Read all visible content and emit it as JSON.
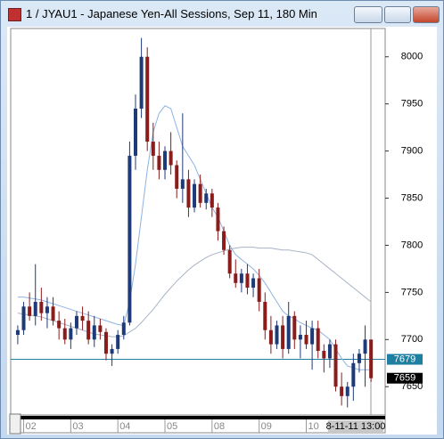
{
  "window_title": "1 / JYAU1 - Japanese Yen-All Sessions, Sep 11, 180 Min",
  "cursor_label": "8-11-11 13:00",
  "chart_data": {
    "type": "candlestick",
    "up_color": "#1f3a78",
    "down_color": "#8b1c1c",
    "open": [
      7705,
      7710,
      7735,
      7725,
      7740,
      7728,
      7735,
      7720,
      7712,
      7700,
      7712,
      7725,
      7720,
      7700,
      7715,
      7708,
      7685,
      7690,
      7705,
      7718,
      7895,
      7945,
      8000,
      7910,
      7895,
      7880,
      7900,
      7885,
      7860,
      7870,
      7840,
      7865,
      7845,
      7855,
      7840,
      7815,
      7795,
      7770,
      7760,
      7770,
      7755,
      7765,
      7740,
      7710,
      7695,
      7715,
      7690,
      7725,
      7700,
      7705,
      7695,
      7712,
      7688,
      7680,
      7695,
      7650,
      7640,
      7650,
      7675,
      7685,
      7700
    ],
    "high": [
      7715,
      7740,
      7750,
      7780,
      7755,
      7745,
      7745,
      7730,
      7722,
      7718,
      7730,
      7735,
      7730,
      7725,
      7722,
      7712,
      7695,
      7710,
      7725,
      7910,
      7960,
      8020,
      8010,
      7930,
      7910,
      7905,
      7920,
      7890,
      7940,
      7880,
      7870,
      7875,
      7860,
      7860,
      7845,
      7820,
      7800,
      7785,
      7775,
      7780,
      7770,
      7775,
      7750,
      7725,
      7720,
      7725,
      7740,
      7730,
      7715,
      7720,
      7720,
      7720,
      7695,
      7700,
      7700,
      7665,
      7655,
      7685,
      7690,
      7715,
      7700
    ],
    "low": [
      7695,
      7705,
      7720,
      7715,
      7720,
      7712,
      7715,
      7700,
      7695,
      7690,
      7705,
      7710,
      7695,
      7692,
      7700,
      7678,
      7672,
      7685,
      7700,
      7715,
      7880,
      7935,
      7900,
      7880,
      7870,
      7870,
      7875,
      7850,
      7845,
      7830,
      7835,
      7840,
      7838,
      7830,
      7805,
      7790,
      7765,
      7755,
      7750,
      7748,
      7745,
      7730,
      7700,
      7685,
      7690,
      7680,
      7685,
      7690,
      7680,
      7690,
      7668,
      7680,
      7665,
      7670,
      7645,
      7630,
      7628,
      7635,
      7665,
      7650,
      7655
    ],
    "close": [
      7710,
      7735,
      7725,
      7740,
      7728,
      7735,
      7720,
      7712,
      7700,
      7712,
      7725,
      7720,
      7700,
      7715,
      7708,
      7685,
      7690,
      7705,
      7718,
      7895,
      7945,
      8000,
      7910,
      7895,
      7880,
      7900,
      7885,
      7860,
      7870,
      7840,
      7865,
      7845,
      7855,
      7840,
      7815,
      7795,
      7770,
      7760,
      7770,
      7755,
      7765,
      7740,
      7710,
      7695,
      7715,
      7690,
      7725,
      7700,
      7705,
      7695,
      7712,
      7688,
      7680,
      7695,
      7650,
      7640,
      7650,
      7675,
      7685,
      7700,
      7659
    ],
    "lines": [
      {
        "color": "#8fb3e0",
        "values": [
          7745,
          7745,
          7744,
          7743,
          7742,
          7740,
          7738,
          7736,
          7734,
          7732,
          7730,
          7728,
          7726,
          7724,
          7722,
          7720,
          7718,
          7716,
          7715,
          7740,
          7780,
          7830,
          7880,
          7920,
          7940,
          7948,
          7945,
          7925,
          7905,
          7895,
          7885,
          7870,
          7855,
          7840,
          7830,
          7815,
          7800,
          7790,
          7785,
          7780,
          7775,
          7768,
          7760,
          7750,
          7740,
          7730,
          7725,
          7722,
          7718,
          7715,
          7712,
          7710,
          7705,
          7700,
          7690,
          7680,
          7672,
          7670,
          7668,
          7668,
          7668
        ]
      },
      {
        "color": "#a8b4c4",
        "values": [
          7728,
          7727,
          7726,
          7725,
          7724,
          7722,
          7720,
          7718,
          7716,
          7714,
          7712,
          7710,
          7708,
          7706,
          7705,
          7704,
          7703,
          7703,
          7704,
          7708,
          7712,
          7718,
          7725,
          7732,
          7740,
          7748,
          7755,
          7762,
          7768,
          7774,
          7779,
          7783,
          7787,
          7790,
          7792,
          7794,
          7796,
          7797,
          7798,
          7798,
          7798,
          7797,
          7797,
          7797,
          7796,
          7795,
          7795,
          7794,
          7793,
          7792,
          7790,
          7785,
          7780,
          7775,
          7770,
          7765,
          7760,
          7755,
          7750,
          7745,
          7740
        ]
      }
    ],
    "ref_line": 7679,
    "ref_color": "#1f7fa0",
    "ylim": [
      7620,
      8030
    ],
    "yticks": [
      7650,
      7700,
      7750,
      7800,
      7850,
      7900,
      7950,
      8000
    ],
    "xlim": [
      -1.2,
      62.4
    ],
    "xticks": [
      {
        "value": 1,
        "label": "02"
      },
      {
        "value": 9,
        "label": "03"
      },
      {
        "value": 17,
        "label": "04"
      },
      {
        "value": 25,
        "label": "05"
      },
      {
        "value": 33,
        "label": "08"
      },
      {
        "value": 41,
        "label": "09"
      },
      {
        "value": 49,
        "label": "10"
      }
    ]
  }
}
